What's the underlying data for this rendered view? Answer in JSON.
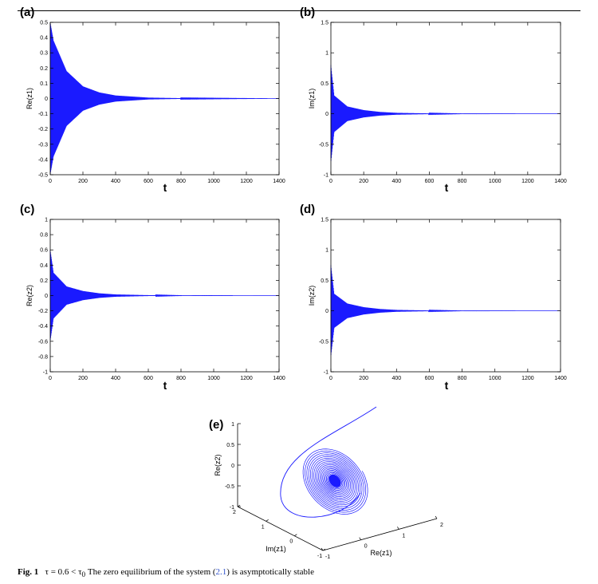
{
  "colors": {
    "series": "#1a1aff",
    "axis": "#000000",
    "ref": "#3355cc"
  },
  "chart_data": [
    {
      "panel": "(a)",
      "type": "line",
      "ylabel": "Re(z1)",
      "xlabel": "t",
      "xlim": [
        0,
        1400
      ],
      "ylim": [
        -0.5,
        0.5
      ],
      "xticks": [
        "0",
        "200",
        "400",
        "600",
        "800",
        "1000",
        "1200",
        "1400"
      ],
      "yticks": [
        "-0.5",
        "-0.4",
        "-0.3",
        "-0.2",
        "-0.1",
        "0",
        "0.1",
        "0.2",
        "0.3",
        "0.4",
        "0.5"
      ],
      "series": [
        {
          "envelope": {
            "t": [
              0,
              20,
              100,
              200,
              300,
              400,
              600,
              800,
              1400
            ],
            "amplitude": [
              0.5,
              0.38,
              0.18,
              0.08,
              0.04,
              0.02,
              0.006,
              0.002,
              0
            ]
          }
        }
      ]
    },
    {
      "panel": "(b)",
      "type": "line",
      "ylabel": "Im(z1)",
      "xlabel": "t",
      "xlim": [
        0,
        1400
      ],
      "ylim": [
        -1,
        1.5
      ],
      "xticks": [
        "0",
        "200",
        "400",
        "600",
        "800",
        "1000",
        "1200",
        "1400"
      ],
      "yticks": [
        "-1",
        "-0.5",
        "0",
        "0.5",
        "1",
        "1.5"
      ],
      "series": [
        {
          "envelope": {
            "t": [
              0,
              20,
              100,
              200,
              300,
              400,
              600,
              800,
              1400
            ],
            "amplitude": [
              0.8,
              0.3,
              0.12,
              0.06,
              0.03,
              0.015,
              0.005,
              0.001,
              0
            ]
          }
        }
      ]
    },
    {
      "panel": "(c)",
      "type": "line",
      "ylabel": "Re(z2)",
      "xlabel": "t",
      "xlim": [
        0,
        1400
      ],
      "ylim": [
        -1,
        1
      ],
      "xticks": [
        "0",
        "200",
        "400",
        "600",
        "800",
        "1000",
        "1200",
        "1400"
      ],
      "yticks": [
        "-1",
        "-0.8",
        "-0.6",
        "-0.4",
        "-0.2",
        "0",
        "0.2",
        "0.4",
        "0.6",
        "0.8",
        "1"
      ],
      "series": [
        {
          "envelope": {
            "t": [
              0,
              20,
              100,
              200,
              300,
              400,
              600,
              800,
              1400
            ],
            "amplitude": [
              0.6,
              0.3,
              0.12,
              0.06,
              0.03,
              0.015,
              0.005,
              0.001,
              0
            ]
          }
        }
      ]
    },
    {
      "panel": "(d)",
      "type": "line",
      "ylabel": "Im(z2)",
      "xlabel": "t",
      "xlim": [
        0,
        1400
      ],
      "ylim": [
        -1,
        1.5
      ],
      "xticks": [
        "0",
        "200",
        "400",
        "600",
        "800",
        "1000",
        "1200",
        "1400"
      ],
      "yticks": [
        "-1",
        "-0.5",
        "0",
        "0.5",
        "1",
        "1.5"
      ],
      "series": [
        {
          "envelope": {
            "t": [
              0,
              20,
              100,
              200,
              300,
              400,
              600,
              800,
              1400
            ],
            "amplitude": [
              0.75,
              0.28,
              0.12,
              0.06,
              0.03,
              0.015,
              0.005,
              0.001,
              0
            ]
          }
        }
      ]
    },
    {
      "panel": "(e)",
      "type": "line3d",
      "xlabel": "Re(z1)",
      "ylabel": "Im(z1)",
      "zlabel": "Re(z2)",
      "re_z1_ticks": [
        "-1",
        "0",
        "1",
        "2"
      ],
      "im_z1_ticks": [
        "2",
        "1",
        "0",
        "-1"
      ],
      "re_z2_ticks": [
        "1",
        "0.5",
        "0",
        "-0.5",
        "-1"
      ],
      "trajectory": "spiral converging to the origin"
    }
  ],
  "caption": {
    "label": "Fig. 1",
    "math": "τ = 0.6 < τ",
    "sub": "0",
    "text_a": " The zero equilibrium of the system (",
    "ref": "2.1",
    "text_b": ") is asymptotically stable"
  }
}
